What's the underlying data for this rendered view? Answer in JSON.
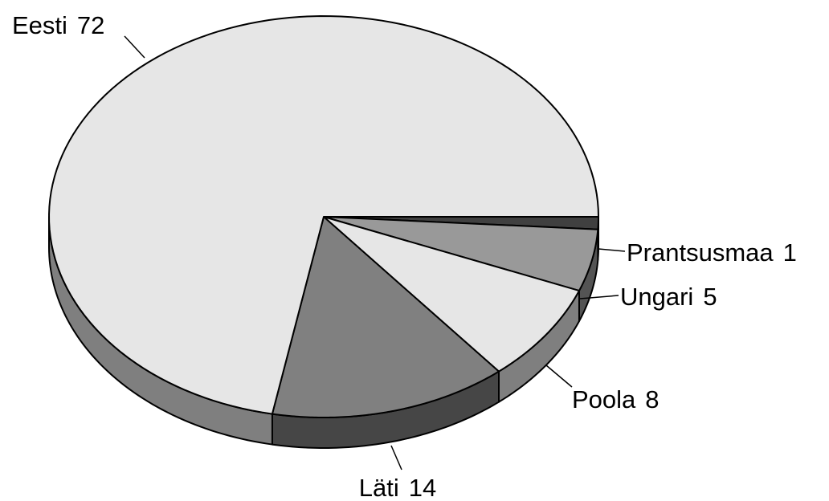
{
  "chart_data": {
    "type": "pie3d",
    "categories": [
      "Prantsusmaa",
      "Ungari",
      "Poola",
      "Läti",
      "Eesti"
    ],
    "values": [
      1,
      5,
      8,
      14,
      72
    ],
    "colors": [
      "#404040",
      "#999999",
      "#e6e6e6",
      "#808080",
      "#e6e6e6"
    ]
  }
}
